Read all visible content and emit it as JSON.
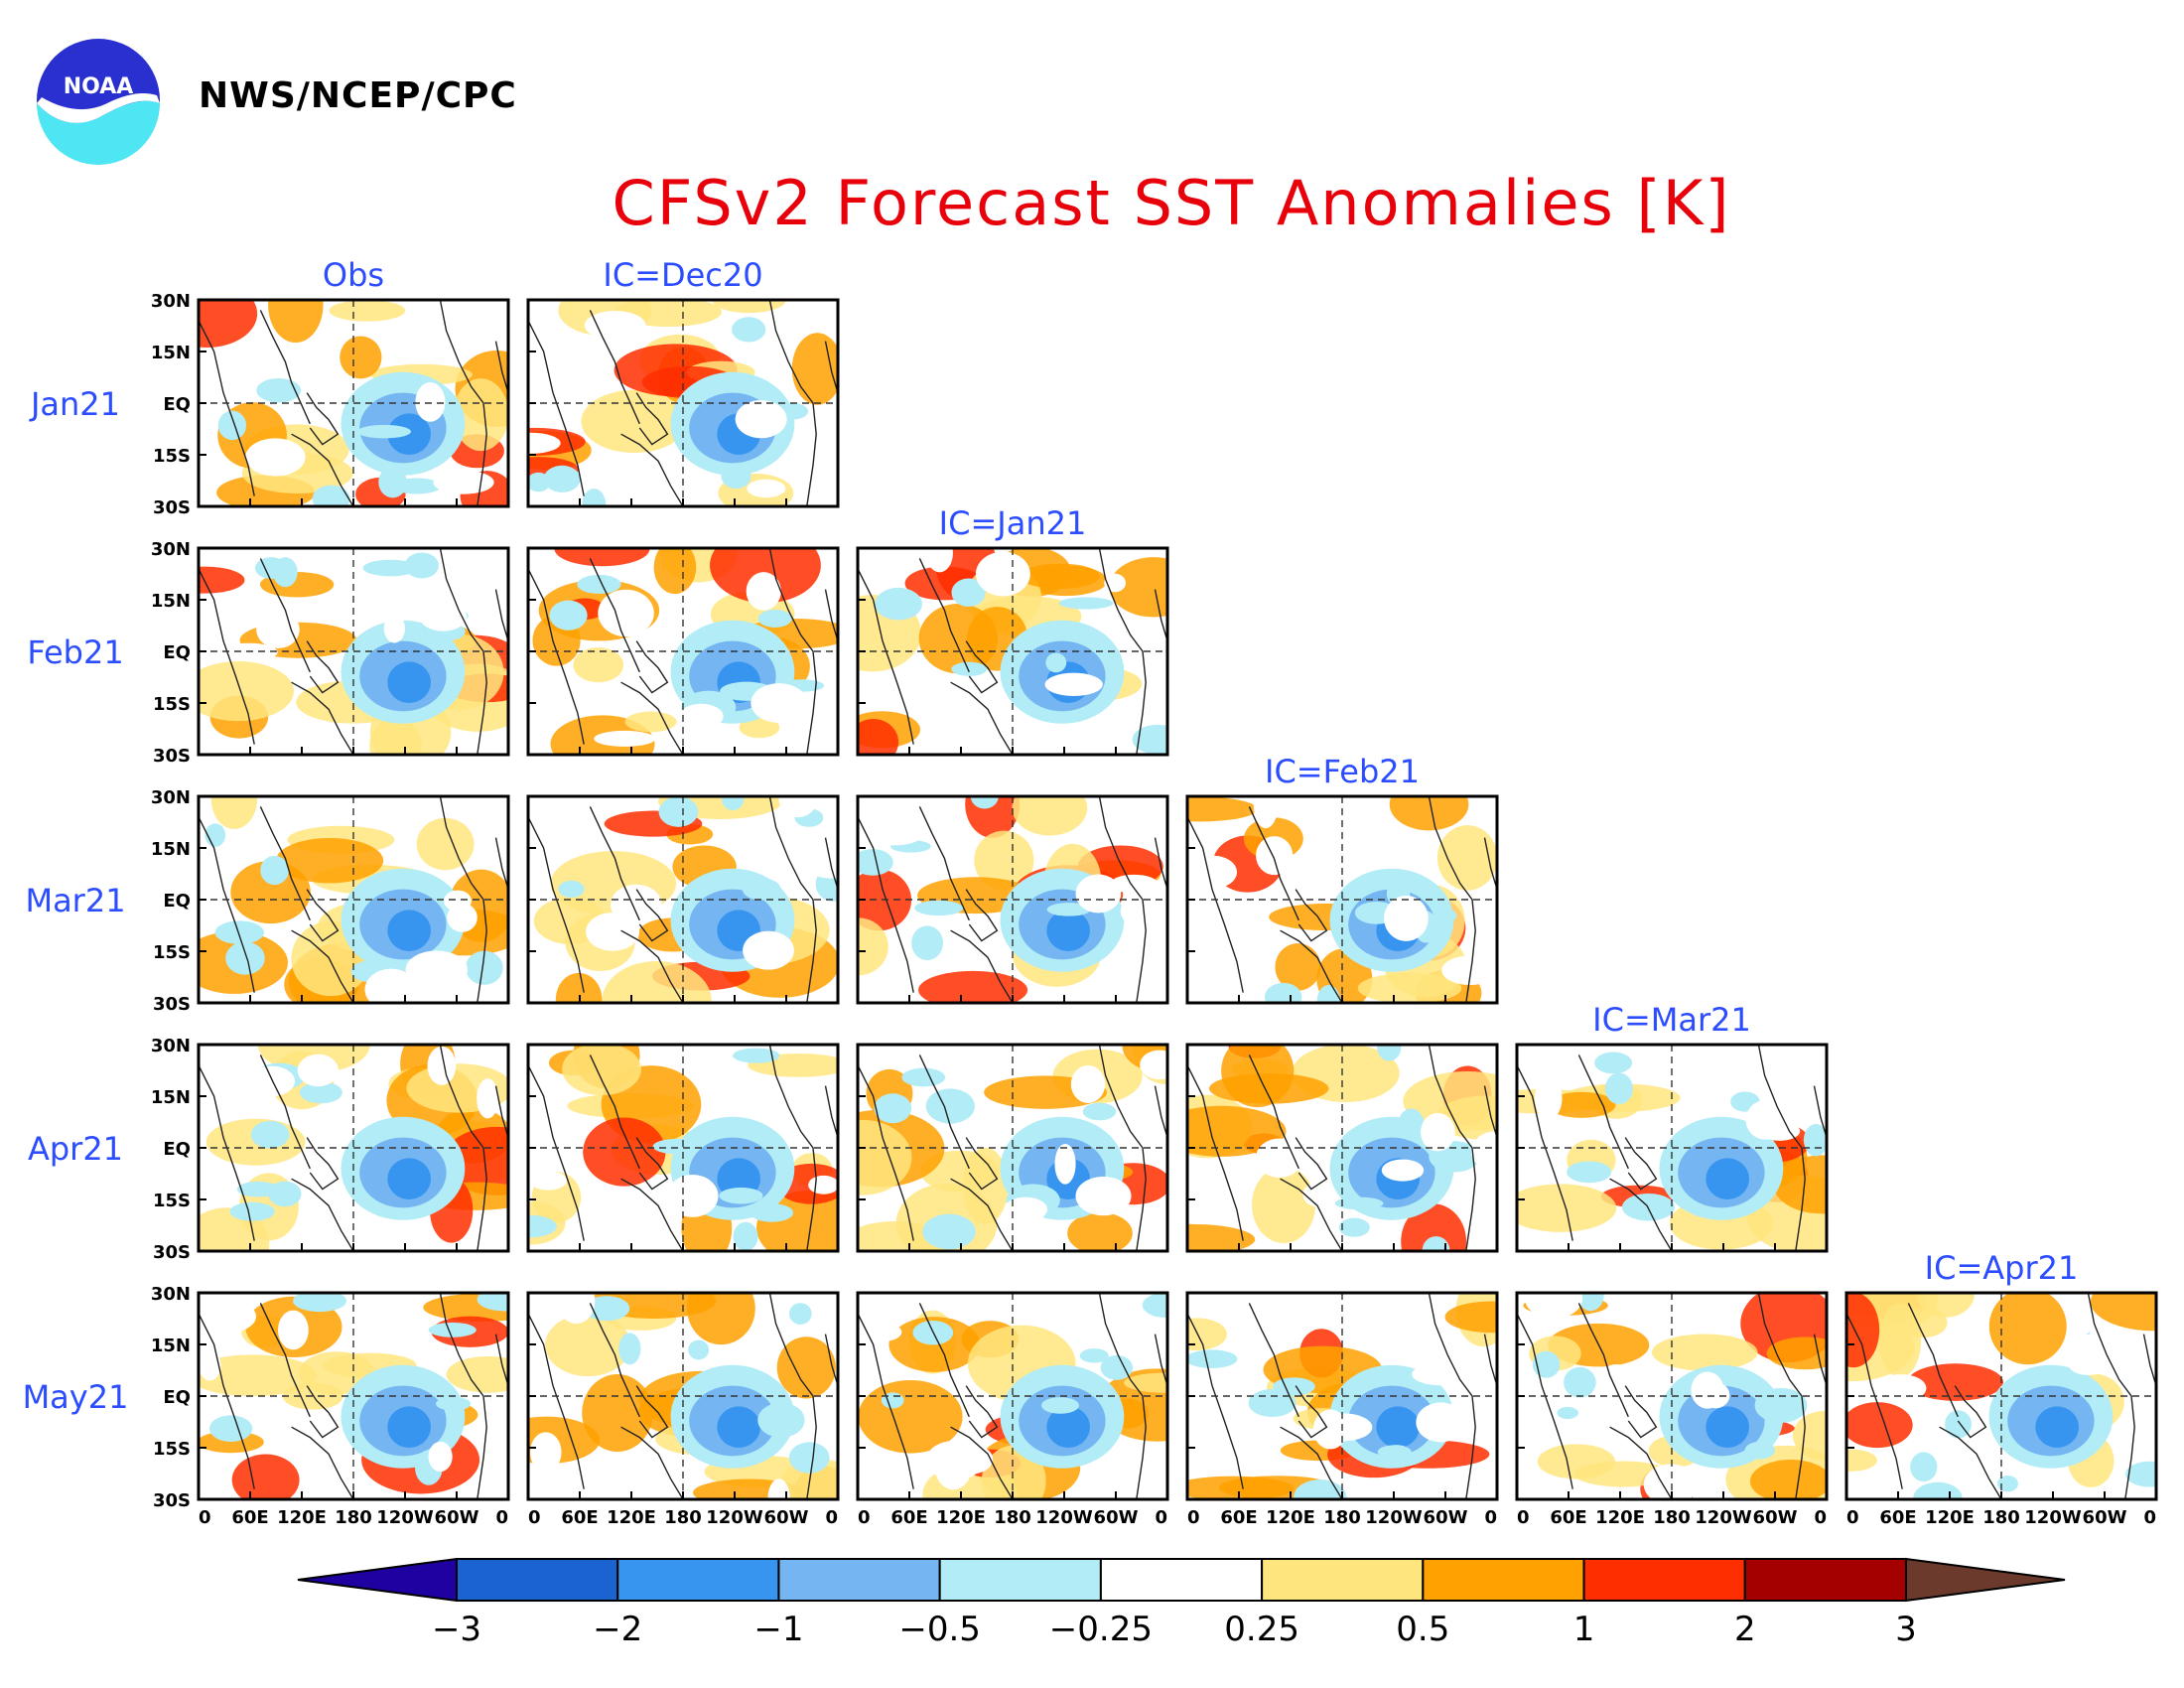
{
  "header": {
    "org": "NWS/NCEP/CPC",
    "logo_text": "NOAA",
    "title": "CFSv2 Forecast SST Anomalies [K]"
  },
  "rows": [
    "Jan21",
    "Feb21",
    "Mar21",
    "Apr21",
    "May21"
  ],
  "columns": [
    "Obs",
    "IC=Dec20",
    "IC=Jan21",
    "IC=Feb21",
    "IC=Mar21",
    "IC=Apr21"
  ],
  "lat_ticks": [
    "30N",
    "15N",
    "EQ",
    "15S",
    "30S"
  ],
  "lon_ticks": [
    "0",
    "60E",
    "120E",
    "180",
    "120W",
    "60W",
    "0"
  ],
  "colorbar": {
    "labels": [
      "−3",
      "−2",
      "−1",
      "−0.5",
      "−0.25",
      "0.25",
      "0.5",
      "1",
      "2",
      "3"
    ],
    "colors": [
      "#1f00a0",
      "#1a63d1",
      "#3795f0",
      "#74b5f2",
      "#b2ecf6",
      "#ffffff",
      "#ffe57e",
      "#ffa100",
      "#ff2e00",
      "#a50000",
      "#6b3a2c"
    ]
  },
  "colors": {
    "title": "#e8000b",
    "labels": "#2b4dff"
  },
  "panels": [
    {
      "row": 0,
      "col": 0,
      "label": "Jan21 Obs"
    },
    {
      "row": 0,
      "col": 1,
      "label": "Jan21 IC=Dec20"
    },
    {
      "row": 1,
      "col": 0,
      "label": "Feb21 Obs"
    },
    {
      "row": 1,
      "col": 1,
      "label": "Feb21 IC=Dec20"
    },
    {
      "row": 1,
      "col": 2,
      "label": "Feb21 IC=Jan21"
    },
    {
      "row": 2,
      "col": 0,
      "label": "Mar21 Obs"
    },
    {
      "row": 2,
      "col": 1,
      "label": "Mar21 IC=Dec20"
    },
    {
      "row": 2,
      "col": 2,
      "label": "Mar21 IC=Jan21"
    },
    {
      "row": 2,
      "col": 3,
      "label": "Mar21 IC=Feb21"
    },
    {
      "row": 3,
      "col": 0,
      "label": "Apr21 Obs"
    },
    {
      "row": 3,
      "col": 1,
      "label": "Apr21 IC=Dec20"
    },
    {
      "row": 3,
      "col": 2,
      "label": "Apr21 IC=Jan21"
    },
    {
      "row": 3,
      "col": 3,
      "label": "Apr21 IC=Feb21"
    },
    {
      "row": 3,
      "col": 4,
      "label": "Apr21 IC=Mar21"
    },
    {
      "row": 4,
      "col": 0,
      "label": "May21 Obs"
    },
    {
      "row": 4,
      "col": 1,
      "label": "May21 IC=Dec20"
    },
    {
      "row": 4,
      "col": 2,
      "label": "May21 IC=Jan21"
    },
    {
      "row": 4,
      "col": 3,
      "label": "May21 IC=Feb21"
    },
    {
      "row": 4,
      "col": 4,
      "label": "May21 IC=Mar21"
    },
    {
      "row": 4,
      "col": 5,
      "label": "May21 IC=Apr21"
    }
  ]
}
